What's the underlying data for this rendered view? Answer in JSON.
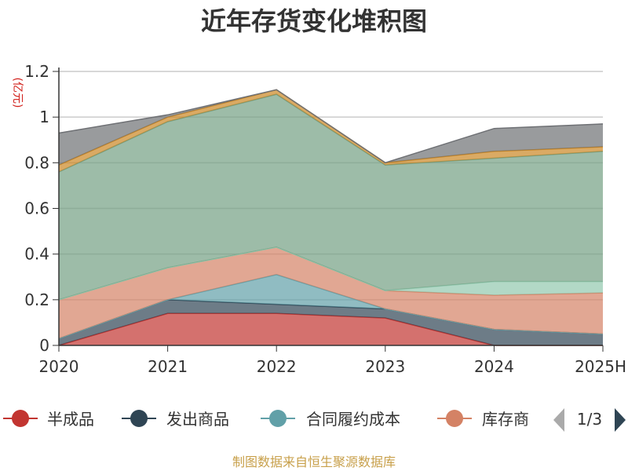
{
  "chart_data": {
    "type": "area",
    "stacked": true,
    "title": "近年存货变化堆积图",
    "unit": "(亿元)",
    "x": [
      "2020",
      "2021",
      "2022",
      "2023",
      "2024",
      "2025H"
    ],
    "ylim": [
      0,
      1.2
    ],
    "yticks": [
      "0",
      "0.2",
      "0.4",
      "0.6",
      "0.8",
      "1",
      "1.2"
    ],
    "grid": true,
    "series": [
      {
        "name": "半成品",
        "color": "#c23531",
        "values": [
          0.0,
          0.14,
          0.14,
          0.12,
          0.0,
          0.0
        ]
      },
      {
        "name": "发出商品",
        "color": "#2f4554",
        "values": [
          0.03,
          0.06,
          0.04,
          0.04,
          0.07,
          0.05
        ]
      },
      {
        "name": "合同履约成本",
        "color": "#61a0a8",
        "values": [
          0.0,
          0.0,
          0.13,
          0.0,
          0.0,
          0.0
        ]
      },
      {
        "name": "库存商品",
        "color": "#d48265",
        "values": [
          0.17,
          0.14,
          0.12,
          0.08,
          0.15,
          0.18
        ]
      },
      {
        "name": "",
        "color": "#91c7ae",
        "values": [
          0.0,
          0.0,
          0.0,
          0.0,
          0.06,
          0.05
        ]
      },
      {
        "name": "",
        "color": "#749f83",
        "values": [
          0.56,
          0.64,
          0.67,
          0.55,
          0.54,
          0.57
        ]
      },
      {
        "name": "",
        "color": "#ca8622",
        "values": [
          0.03,
          0.02,
          0.02,
          0.01,
          0.03,
          0.02
        ]
      },
      {
        "name": "",
        "color": "#6e7074",
        "values": [
          0.14,
          0.01,
          0.0,
          0.0,
          0.1,
          0.1
        ]
      }
    ]
  },
  "legend": {
    "page": "1/3",
    "visible_labels": [
      "半成品",
      "发出商品",
      "合同履约成本",
      "库存商"
    ]
  },
  "source": "制图数据来自恒生聚源数据库"
}
